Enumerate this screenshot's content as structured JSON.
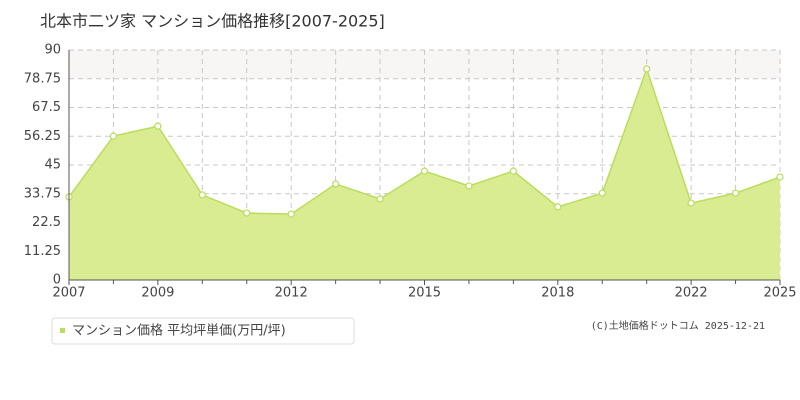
{
  "chart_data": {
    "type": "area",
    "title": "北本市二ツ家 マンション価格推移[2007-2025]",
    "categories": [
      "2007",
      null,
      "2009",
      null,
      null,
      "2012",
      null,
      null,
      "2015",
      null,
      null,
      "2018",
      null,
      null,
      "2022",
      null,
      "2025"
    ],
    "series": [
      {
        "name": "マンション価格 平均坪単価(万円/坪)",
        "color": "#b9dd5c",
        "fill": "#d9ec92",
        "values": [
          32.5,
          56.3,
          60.2,
          33.3,
          26.2,
          25.8,
          37.6,
          31.7,
          42.6,
          36.8,
          42.6,
          28.6,
          34.0,
          82.6,
          30.1,
          34.0,
          40.3
        ]
      }
    ],
    "ylim": [
      0,
      90
    ],
    "yticks": [
      0,
      11.25,
      22.5,
      33.75,
      45,
      56.25,
      67.5,
      78.75,
      90
    ],
    "grid": true,
    "source": "(C)土地価格ドットコム 2025-12-21"
  }
}
